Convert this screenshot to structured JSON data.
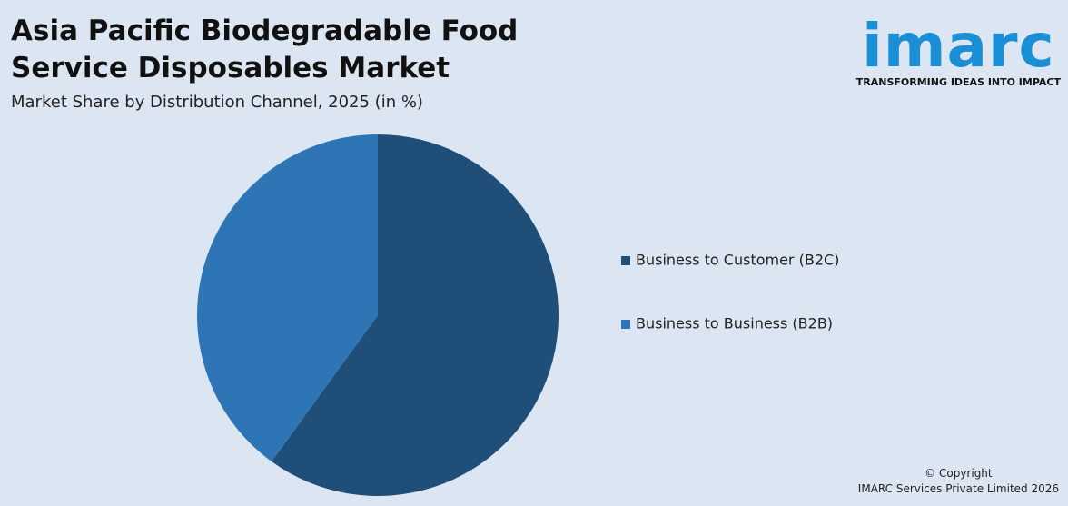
{
  "chart_data": {
    "type": "pie",
    "title": "Asia Pacific Biodegradable Food Service Disposables Market",
    "subtitle": "Market Share by Distribution Channel, 2025 (in %)",
    "categories": [
      "Business to Customer (B2C)",
      "Business to Business (B2B)"
    ],
    "values": [
      60,
      40
    ],
    "colors": [
      "#1f4e79",
      "#2e75b6"
    ],
    "legend": "right"
  },
  "logo": {
    "name": "imarc",
    "tagline": "TRANSFORMING IDEAS INTO IMPACT"
  },
  "footer": {
    "line1": "© Copyright",
    "line2": "IMARC Services Private Limited 2026"
  }
}
